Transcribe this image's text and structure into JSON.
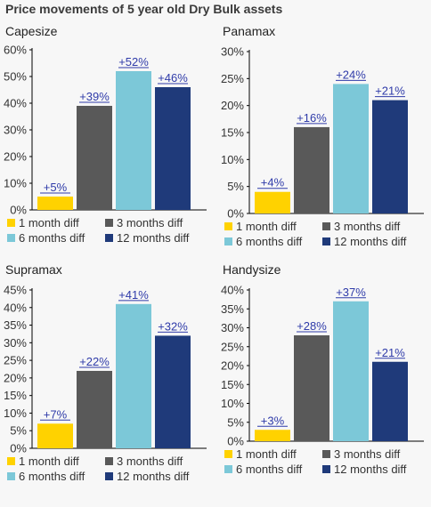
{
  "title": "Price movements of 5 year old Dry Bulk assets",
  "colors": {
    "1m": "#FFD200",
    "3m": "#595959",
    "6m": "#7CC8D8",
    "12m": "#1F3A7A",
    "label": "#2F3BA9",
    "axis": "#000000"
  },
  "legend": [
    "1 month diff",
    "3 months diff",
    "6 months diff",
    "12 months diff"
  ],
  "chart_data": [
    {
      "type": "bar",
      "title": "Capesize",
      "categories": [
        "1 month diff",
        "3 months diff",
        "6 months diff",
        "12 months diff"
      ],
      "values": [
        5,
        39,
        52,
        46
      ],
      "data_labels": [
        "+5%",
        "+39%",
        "+52%",
        "+46%"
      ],
      "ylim": [
        0,
        60
      ],
      "yticks": [
        0,
        10,
        20,
        30,
        40,
        50,
        60
      ],
      "ytick_labels": [
        "0%",
        "10%",
        "20%",
        "30%",
        "40%",
        "50%",
        "60%"
      ],
      "grid": false,
      "legend_position": "bottom"
    },
    {
      "type": "bar",
      "title": "Panamax",
      "categories": [
        "1 month diff",
        "3 months diff",
        "6 months diff",
        "12 months diff"
      ],
      "values": [
        4,
        16,
        24,
        21
      ],
      "data_labels": [
        "+4%",
        "+16%",
        "+24%",
        "+21%"
      ],
      "ylim": [
        0,
        30
      ],
      "yticks": [
        0,
        5,
        10,
        15,
        20,
        25,
        30
      ],
      "ytick_labels": [
        "0%",
        "5%",
        "10%",
        "15%",
        "20%",
        "25%",
        "30%"
      ],
      "grid": false,
      "legend_position": "bottom"
    },
    {
      "type": "bar",
      "title": "Supramax",
      "categories": [
        "1 month diff",
        "3 months diff",
        "6 months diff",
        "12 months diff"
      ],
      "values": [
        7,
        22,
        41,
        32
      ],
      "data_labels": [
        "+7%",
        "+22%",
        "+41%",
        "+32%"
      ],
      "ylim": [
        0,
        45
      ],
      "yticks": [
        0,
        5,
        10,
        15,
        20,
        25,
        30,
        35,
        40,
        45
      ],
      "ytick_labels": [
        "0%",
        "5%",
        "10%",
        "15%",
        "20%",
        "25%",
        "30%",
        "35%",
        "40%",
        "45%"
      ],
      "grid": false,
      "legend_position": "bottom"
    },
    {
      "type": "bar",
      "title": "Handysize",
      "categories": [
        "1 month diff",
        "3 months diff",
        "6 months diff",
        "12 months diff"
      ],
      "values": [
        3,
        28,
        37,
        21
      ],
      "data_labels": [
        "+3%",
        "+28%",
        "+37%",
        "+21%"
      ],
      "ylim": [
        0,
        40
      ],
      "yticks": [
        0,
        5,
        10,
        15,
        20,
        25,
        30,
        35,
        40
      ],
      "ytick_labels": [
        "0%",
        "5%",
        "10%",
        "15%",
        "20%",
        "25%",
        "30%",
        "35%",
        "40%"
      ],
      "grid": false,
      "legend_position": "bottom"
    }
  ]
}
